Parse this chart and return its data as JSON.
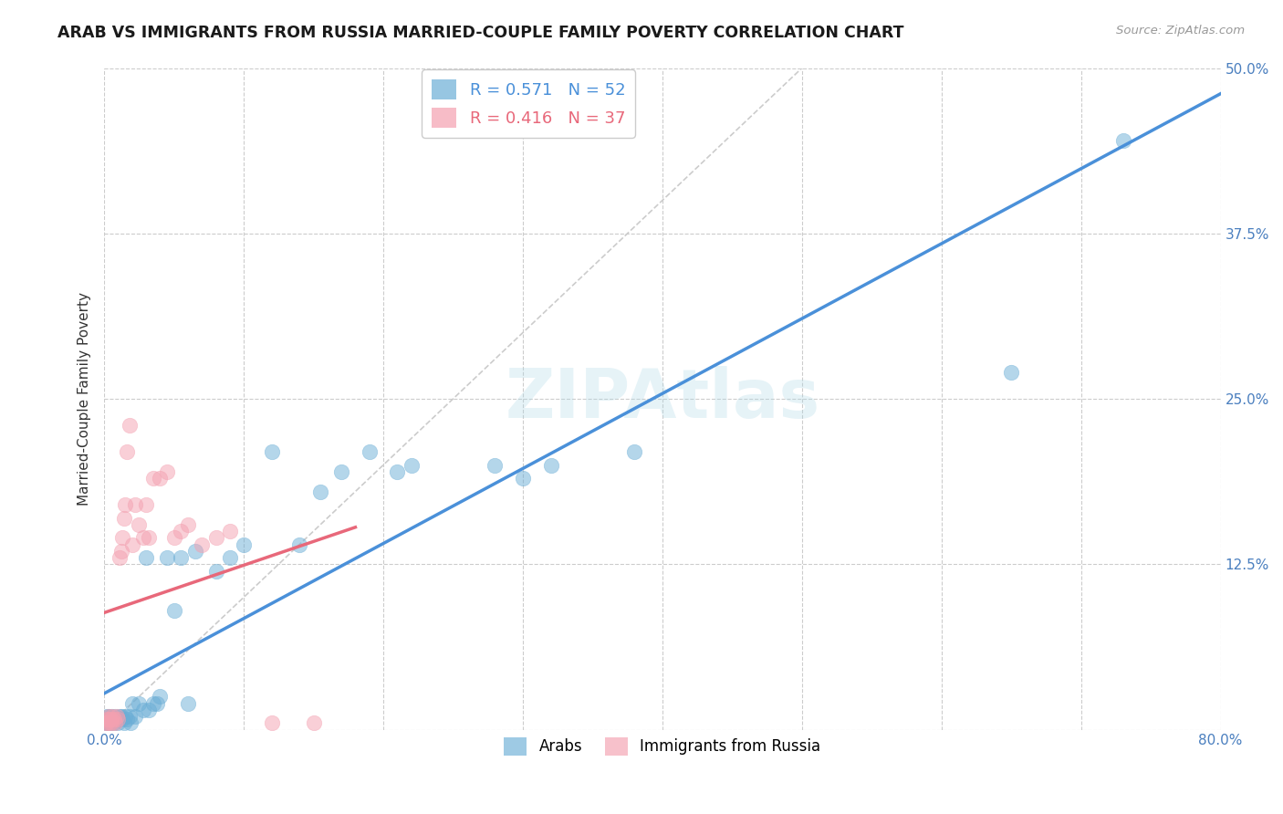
{
  "title": "ARAB VS IMMIGRANTS FROM RUSSIA MARRIED-COUPLE FAMILY POVERTY CORRELATION CHART",
  "source": "Source: ZipAtlas.com",
  "ylabel": "Married-Couple Family Poverty",
  "xlim": [
    0,
    0.8
  ],
  "ylim": [
    0,
    0.5
  ],
  "xticks": [
    0.0,
    0.1,
    0.2,
    0.3,
    0.4,
    0.5,
    0.6,
    0.7,
    0.8
  ],
  "xticklabels": [
    "0.0%",
    "",
    "",
    "",
    "",
    "",
    "",
    "",
    "80.0%"
  ],
  "yticks": [
    0.0,
    0.125,
    0.25,
    0.375,
    0.5
  ],
  "yticklabels": [
    "",
    "12.5%",
    "25.0%",
    "37.5%",
    "50.0%"
  ],
  "background_color": "#ffffff",
  "grid_color": "#cccccc",
  "legend1_label": "R = 0.571   N = 52",
  "legend2_label": "R = 0.416   N = 37",
  "legend1_color": "#6baed6",
  "legend2_color": "#f4a0b0",
  "line1_color": "#4a90d9",
  "line2_color": "#e8687a",
  "diagonal_color": "#cccccc",
  "arab_x": [
    0.001,
    0.002,
    0.002,
    0.003,
    0.003,
    0.004,
    0.004,
    0.005,
    0.005,
    0.006,
    0.007,
    0.008,
    0.009,
    0.01,
    0.011,
    0.012,
    0.013,
    0.014,
    0.015,
    0.016,
    0.018,
    0.019,
    0.02,
    0.022,
    0.025,
    0.028,
    0.03,
    0.032,
    0.035,
    0.038,
    0.04,
    0.045,
    0.05,
    0.055,
    0.06,
    0.065,
    0.08,
    0.09,
    0.1,
    0.12,
    0.14,
    0.155,
    0.17,
    0.19,
    0.21,
    0.22,
    0.28,
    0.3,
    0.32,
    0.38,
    0.65,
    0.73
  ],
  "arab_y": [
    0.005,
    0.01,
    0.005,
    0.01,
    0.005,
    0.008,
    0.005,
    0.01,
    0.005,
    0.008,
    0.005,
    0.01,
    0.008,
    0.005,
    0.01,
    0.01,
    0.008,
    0.005,
    0.01,
    0.008,
    0.01,
    0.005,
    0.02,
    0.01,
    0.02,
    0.015,
    0.13,
    0.015,
    0.02,
    0.02,
    0.025,
    0.13,
    0.09,
    0.13,
    0.02,
    0.135,
    0.12,
    0.13,
    0.14,
    0.21,
    0.14,
    0.18,
    0.195,
    0.21,
    0.195,
    0.2,
    0.2,
    0.19,
    0.2,
    0.21,
    0.27,
    0.445
  ],
  "russia_x": [
    0.001,
    0.002,
    0.002,
    0.003,
    0.003,
    0.004,
    0.005,
    0.005,
    0.006,
    0.007,
    0.008,
    0.009,
    0.01,
    0.011,
    0.012,
    0.013,
    0.014,
    0.015,
    0.016,
    0.018,
    0.02,
    0.022,
    0.025,
    0.028,
    0.03,
    0.032,
    0.035,
    0.04,
    0.045,
    0.05,
    0.055,
    0.06,
    0.07,
    0.08,
    0.09,
    0.12,
    0.15
  ],
  "russia_y": [
    0.005,
    0.008,
    0.005,
    0.008,
    0.01,
    0.005,
    0.008,
    0.005,
    0.01,
    0.008,
    0.005,
    0.01,
    0.008,
    0.13,
    0.135,
    0.145,
    0.16,
    0.17,
    0.21,
    0.23,
    0.14,
    0.17,
    0.155,
    0.145,
    0.17,
    0.145,
    0.19,
    0.19,
    0.195,
    0.145,
    0.15,
    0.155,
    0.14,
    0.145,
    0.15,
    0.005,
    0.005
  ]
}
